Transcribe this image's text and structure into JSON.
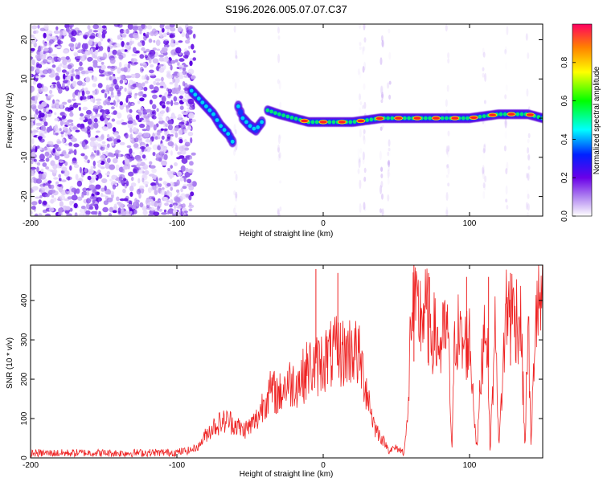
{
  "chart_data": [
    {
      "type": "heatmap",
      "title": "S196.2026.005.07.07.C37",
      "xlabel": "Height of straight line (km)",
      "ylabel": "Frequency (Hz)",
      "xlim": [
        -200,
        150
      ],
      "ylim": [
        -25,
        24
      ],
      "xticks": [
        -200,
        -100,
        0,
        100
      ],
      "yticks": [
        -20,
        -10,
        0,
        10,
        20
      ],
      "colorbar": {
        "label": "Normalized spectral amplitude",
        "range": [
          0,
          1
        ],
        "ticks": [
          0.0,
          0.2,
          0.4,
          0.6,
          0.8
        ],
        "tick_labels": [
          "0.0",
          "0.2",
          "0.4",
          "0.6",
          "0.8"
        ],
        "stops": [
          "#ffffff",
          "#b084f0",
          "#6a00e8",
          "#0020ff",
          "#00ffff",
          "#00ff00",
          "#ffff00",
          "#ff8000",
          "#ff0040"
        ]
      },
      "noise_region_x": [
        -200,
        -88
      ],
      "features": [
        {
          "name": "descending streak",
          "points": [
            [
              -90,
              7
            ],
            [
              -85,
              5
            ],
            [
              -80,
              3
            ],
            [
              -75,
              1
            ],
            [
              -70,
              -2
            ],
            [
              -65,
              -4
            ],
            [
              -62,
              -6
            ]
          ]
        },
        {
          "name": "second streak",
          "points": [
            [
              -58,
              3
            ],
            [
              -55,
              0
            ],
            [
              -50,
              -2
            ],
            [
              -46,
              -3
            ],
            [
              -42,
              -1
            ]
          ]
        },
        {
          "name": "stable track",
          "points": [
            [
              -38,
              2
            ],
            [
              -30,
              1
            ],
            [
              -20,
              0
            ],
            [
              -10,
              -1
            ],
            [
              0,
              -1
            ],
            [
              20,
              -1
            ],
            [
              40,
              0
            ],
            [
              60,
              0
            ],
            [
              80,
              0
            ],
            [
              100,
              0
            ],
            [
              120,
              1
            ],
            [
              140,
              1
            ],
            [
              150,
              0
            ]
          ]
        }
      ]
    },
    {
      "type": "line",
      "xlabel": "Height of straight line (km)",
      "ylabel": "SNR (10 * v/v)",
      "xlim": [
        -200,
        150
      ],
      "ylim": [
        0,
        490
      ],
      "xticks": [
        -200,
        -100,
        0,
        100
      ],
      "yticks": [
        0,
        100,
        200,
        300,
        400
      ],
      "line_color": "#ee2222",
      "series": [
        {
          "name": "SNR",
          "x": [
            -200,
            -180,
            -160,
            -140,
            -120,
            -100,
            -90,
            -85,
            -80,
            -75,
            -70,
            -65,
            -60,
            -55,
            -50,
            -45,
            -40,
            -35,
            -30,
            -25,
            -20,
            -15,
            -10,
            -5,
            0,
            5,
            10,
            15,
            20,
            25,
            30,
            35,
            40,
            45,
            50,
            55,
            58,
            60,
            62,
            65,
            70,
            75,
            80,
            85,
            88,
            90,
            92,
            95,
            100,
            105,
            110,
            112,
            114,
            118,
            120,
            125,
            130,
            135,
            138,
            140,
            142,
            145,
            148,
            150
          ],
          "values": [
            12,
            12,
            13,
            12,
            13,
            14,
            20,
            30,
            60,
            80,
            90,
            95,
            85,
            70,
            80,
            100,
            150,
            170,
            160,
            190,
            190,
            200,
            230,
            230,
            250,
            260,
            270,
            265,
            280,
            250,
            170,
            80,
            50,
            20,
            25,
            15,
            100,
            380,
            360,
            360,
            370,
            320,
            280,
            330,
            20,
            330,
            320,
            280,
            300,
            20,
            350,
            330,
            20,
            360,
            20,
            380,
            370,
            350,
            20,
            380,
            20,
            360,
            380,
            400
          ],
          "spikes": [
            [
              -5,
              480
            ],
            [
              10,
              470
            ],
            [
              62,
              490
            ],
            [
              72,
              470
            ],
            [
              98,
              460
            ],
            [
              113,
              460
            ],
            [
              128,
              470
            ],
            [
              150,
              460
            ]
          ]
        }
      ]
    }
  ]
}
